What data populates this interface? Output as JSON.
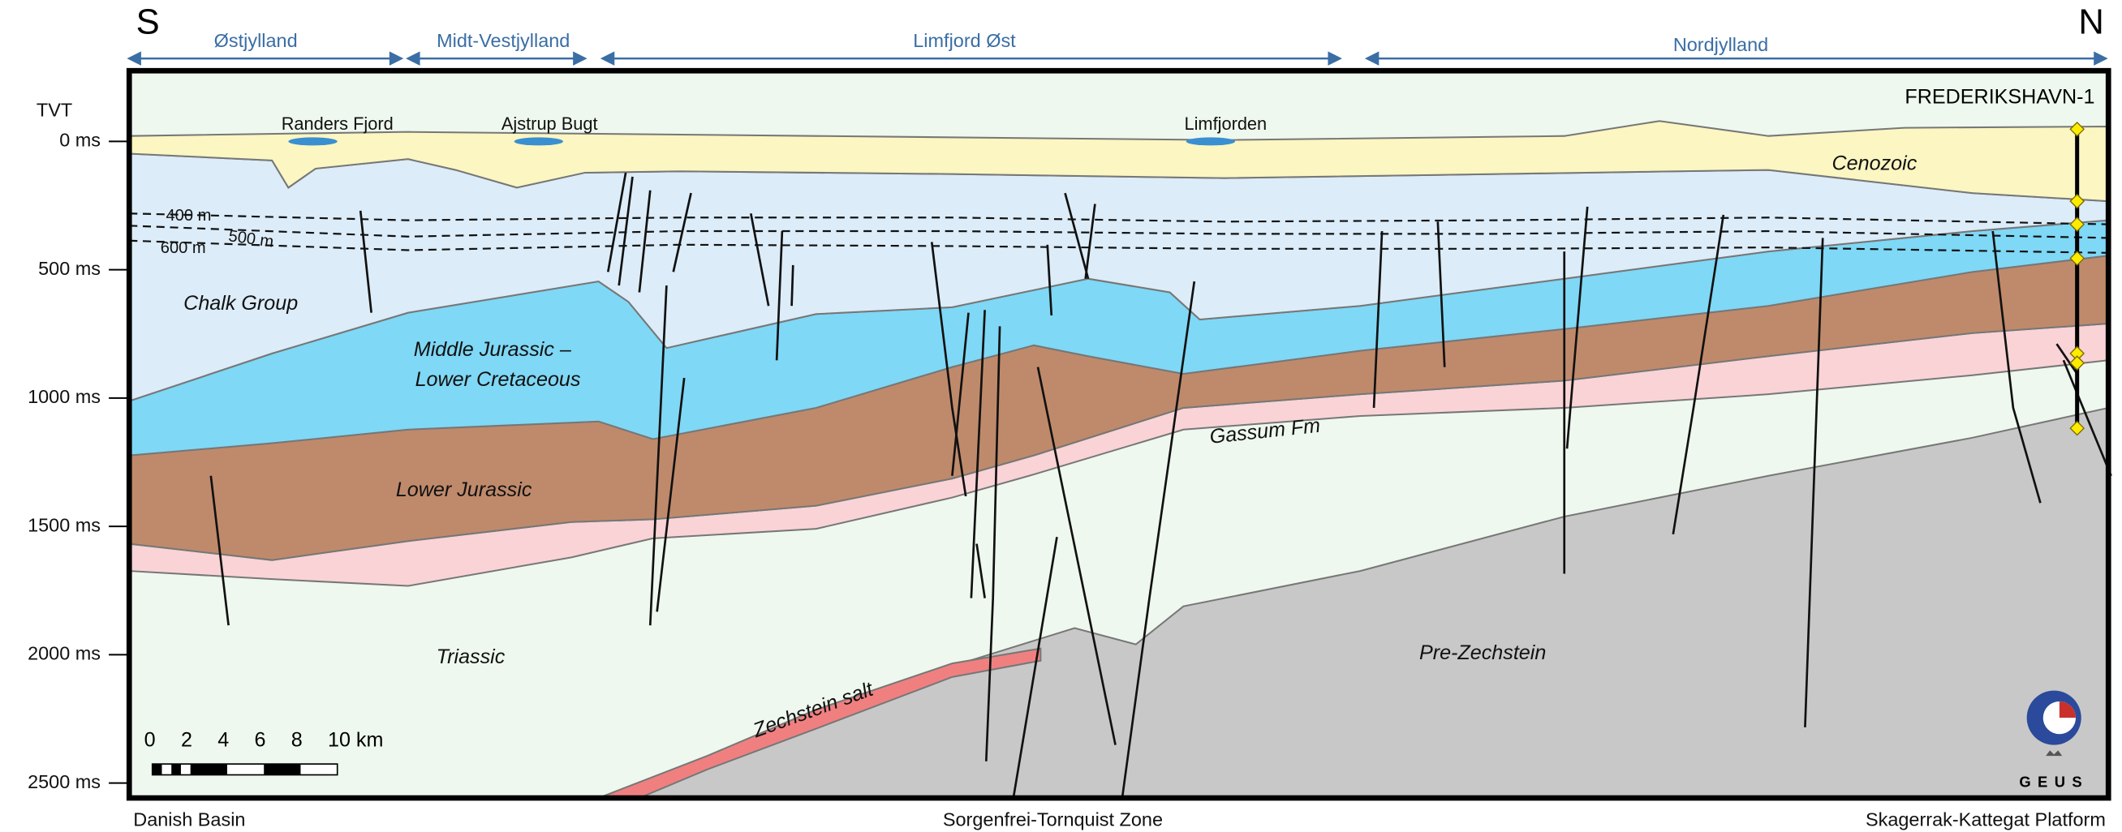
{
  "header": {
    "south": "S",
    "north": "N",
    "regions": [
      "Østjylland",
      "Midt-Vestjylland",
      "Limfjord Øst",
      "Nordjylland"
    ]
  },
  "axis": {
    "title": "TVT",
    "labels": [
      "0 ms",
      "500 ms",
      "1000 ms",
      "1500 ms",
      "2000 ms",
      "2500 ms"
    ]
  },
  "places": [
    "Randers Fjord",
    "Ajstrup Bugt",
    "Limfjorden"
  ],
  "well": "FREDERIKSHAVN-1",
  "units": {
    "cenozoic": "Cenozoic",
    "chalk": "Chalk Group",
    "middle_jurassic": [
      "Middle Jurassic –",
      "Lower Cretaceous"
    ],
    "lower_jurassic": "Lower Jurassic",
    "gassum": "Gassum Fm",
    "triassic": "Triassic",
    "zechstein": "Zechstein salt",
    "pre_zechstein": "Pre-Zechstein"
  },
  "depth_contours": [
    "400 m",
    "500 m",
    "600 m"
  ],
  "scale_bar": [
    "0",
    "2",
    "4",
    "6",
    "8",
    "10 km"
  ],
  "logo": "GEUS",
  "footer": [
    "Danish Basin",
    "Sorgenfrei-Tornquist Zone",
    "Skagerrak-Kattegat Platform"
  ]
}
